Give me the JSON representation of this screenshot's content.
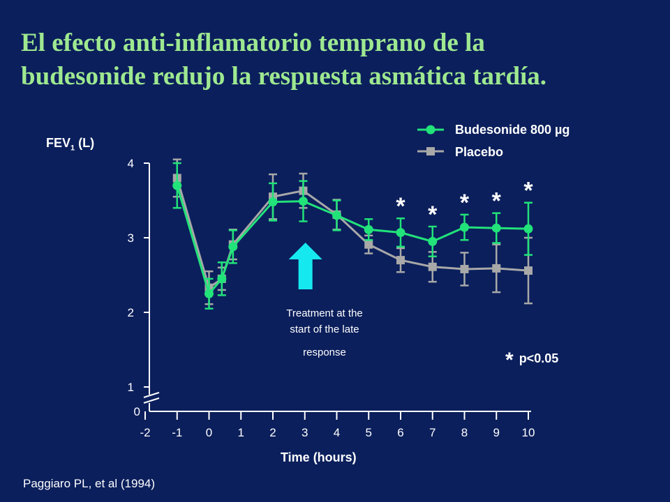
{
  "title_line1": "El efecto anti-inflamatorio temprano de la",
  "title_line2": "budesonide redujo la respuesta asmática tardía.",
  "citation": "Paggiaro PL, et al (1994)",
  "annotation": {
    "line1": "Treatment at the",
    "line2": "start of the late",
    "line3": "response"
  },
  "significance_note": {
    "star": "*",
    "text": "p<0.05"
  },
  "colors": {
    "background": "#0b1f5c",
    "title": "#9ee890",
    "budesonide": "#22e27a",
    "placebo": "#a8a8a8",
    "arrow": "#16e8f0",
    "axis": "#ffffff"
  },
  "chart_data": {
    "type": "line",
    "title": "",
    "ylabel_main": "FEV",
    "ylabel_sub": "1",
    "ylabel_unit": " (L)",
    "xlabel": "Time (hours)",
    "x_ticks": [
      "-2",
      "-1",
      "0",
      "1",
      "2",
      "3",
      "4",
      "5",
      "6",
      "7",
      "8",
      "9",
      "10"
    ],
    "y_ticks": [
      "1",
      "2",
      "3",
      "4"
    ],
    "y_zero_label": "0",
    "y_axis_break": true,
    "xlim": [
      -2,
      10
    ],
    "ylim": [
      1,
      4
    ],
    "legend_position": "top-right",
    "series": [
      {
        "name": "Budesonide 800 µg",
        "marker": "circle",
        "color": "#22e27a",
        "x": [
          -1,
          0,
          0.4,
          0.75,
          2,
          2.95,
          4,
          5,
          6,
          7,
          8,
          9,
          10
        ],
        "y": [
          3.7,
          2.25,
          2.45,
          2.88,
          3.48,
          3.49,
          3.3,
          3.11,
          3.07,
          2.95,
          3.14,
          3.13,
          3.12
        ],
        "err": [
          0.3,
          0.2,
          0.22,
          0.22,
          0.25,
          0.27,
          0.2,
          0.14,
          0.19,
          0.2,
          0.17,
          0.2,
          0.35
        ]
      },
      {
        "name": "Placebo",
        "marker": "square",
        "color": "#a8a8a8",
        "x": [
          -1,
          0,
          0.4,
          0.75,
          2,
          2.95,
          4,
          5,
          6,
          7,
          8,
          9,
          10
        ],
        "y": [
          3.8,
          2.33,
          2.45,
          2.91,
          3.55,
          3.63,
          3.31,
          2.91,
          2.7,
          2.61,
          2.58,
          2.59,
          2.56
        ],
        "err": [
          0.25,
          0.22,
          0.15,
          0.2,
          0.3,
          0.23,
          0.2,
          0.12,
          0.16,
          0.2,
          0.22,
          0.32,
          0.44
        ]
      }
    ],
    "significance_x": [
      6,
      7,
      8,
      9,
      10
    ],
    "significance_marker": "*"
  }
}
